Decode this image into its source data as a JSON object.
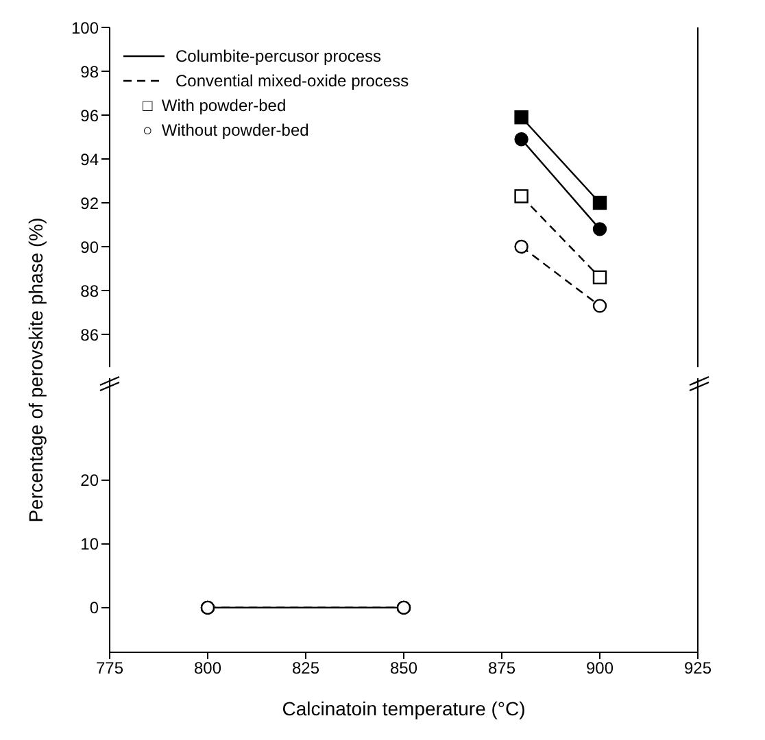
{
  "chart_data": [
    {
      "type": "line",
      "ylabel": "Percentage of perovskite phase (%)",
      "x": [
        880,
        900
      ],
      "xlim": [
        775,
        925
      ],
      "xticks": [
        775,
        800,
        825,
        850,
        875,
        900,
        925
      ],
      "ylim": [
        84.5,
        100
      ],
      "yticks": [
        86,
        88,
        90,
        92,
        94,
        96,
        98,
        100
      ],
      "tick_labels": "y",
      "annotations": [
        "Columbite-percusor process",
        "Convential mixed-oxide process",
        "□  With powder-bed",
        "○  Without powder-bed"
      ],
      "series": [
        {
          "color": "#000000",
          "line_style": "solid",
          "marker": "square",
          "values": [
            95.9,
            92.0
          ]
        },
        {
          "color": "#000000",
          "line_style": "solid",
          "marker": "circle",
          "values": [
            94.9,
            90.8
          ]
        },
        {
          "color": "#000000",
          "line_style": "dashed",
          "marker": "square",
          "values": [
            92.3,
            88.6
          ]
        },
        {
          "color": "#000000",
          "line_style": "dashed",
          "marker": "circle",
          "values": [
            90.0,
            87.3
          ]
        }
      ]
    },
    {
      "type": "line",
      "xlabel": "Calcinatoin temperature (°C)",
      "x": [
        800,
        850
      ],
      "xlim": [
        775,
        925
      ],
      "xticks": [
        775,
        800,
        825,
        850,
        875,
        900,
        925
      ],
      "ylim": [
        -7,
        36
      ],
      "yticks": [
        0,
        10,
        20
      ],
      "series": [
        {
          "color": "#000000",
          "line_style": "solid",
          "marker": "circle",
          "values": [
            0,
            0
          ]
        },
        {
          "color": "#000000",
          "line_style": "solid",
          "marker": "circle",
          "values": [
            0,
            0
          ]
        },
        {
          "color": "#000000",
          "line_style": "dashed",
          "marker": "circle",
          "values": [
            0,
            0
          ]
        },
        {
          "color": "#000000",
          "line_style": "dashed",
          "marker": "circle",
          "values": [
            0,
            0
          ]
        }
      ]
    }
  ]
}
